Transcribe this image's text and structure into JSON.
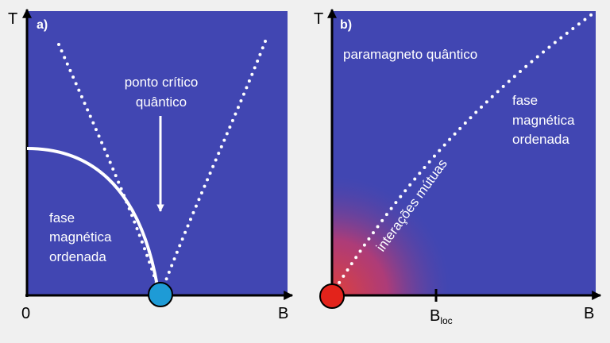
{
  "colors": {
    "background": "#f0f0f0",
    "panel_fill": "#4146b2",
    "axis": "#000000",
    "curve": "#ffffff",
    "critical_point_a": "#1e9bd6",
    "critical_point_b": "#e3231b",
    "gradient_hot": "#e0403a"
  },
  "panel_a": {
    "tag": "a)",
    "y_axis_label": "T",
    "x_axis_label": "B",
    "origin_label": "0",
    "annotation_line1": "ponto crítico",
    "annotation_line2": "quântico",
    "phase_line1": "fase",
    "phase_line2": "magnética",
    "phase_line3": "ordenada"
  },
  "panel_b": {
    "tag": "b)",
    "y_axis_label": "T",
    "x_axis_label": "B",
    "paramagnet_label": "paramagneto quântico",
    "phase_line1": "fase",
    "phase_line2": "magnética",
    "phase_line3": "ordenada",
    "crossover_label": "interações mútuas",
    "tick_main": "B",
    "tick_sub": "loc"
  }
}
